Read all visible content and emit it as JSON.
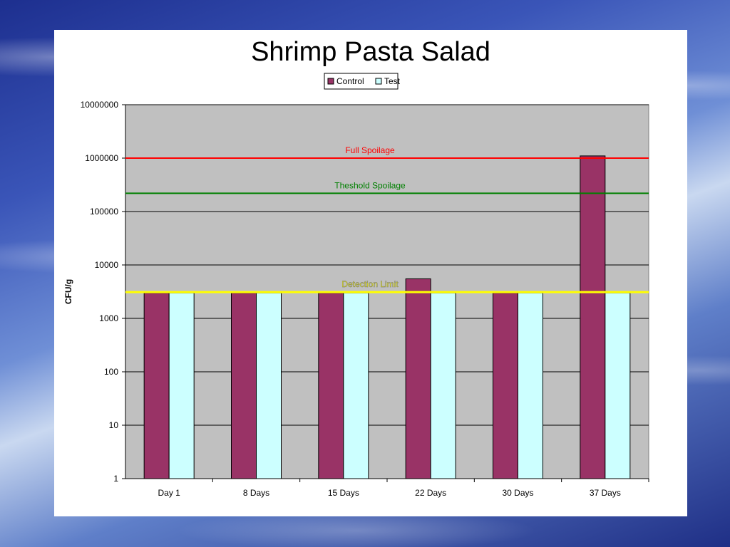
{
  "chart_data": {
    "type": "bar",
    "title": "Shrimp Pasta Salad",
    "xlabel": "",
    "ylabel": "CFU/g",
    "scale": "log",
    "ylim": [
      1,
      10000000
    ],
    "yticks": [
      "1",
      "10",
      "100",
      "1000",
      "10000",
      "100000",
      "1000000",
      "10000000"
    ],
    "categories": [
      "Day 1",
      "8 Days",
      "15 Days",
      "22 Days",
      "30 Days",
      "37 Days"
    ],
    "series": [
      {
        "name": "Control",
        "color": "#993366",
        "values": [
          3000,
          3000,
          3000,
          5500,
          3000,
          1100000
        ]
      },
      {
        "name": "Test",
        "color": "#ccffff",
        "values": [
          3000,
          3000,
          3000,
          3000,
          3000,
          3000
        ]
      }
    ],
    "reference_lines": [
      {
        "label": "Full Spoilage",
        "value": 1000000,
        "color": "#ff0000"
      },
      {
        "label": "Theshold Spoilage",
        "value": 220000,
        "color": "#008000"
      },
      {
        "label": "Detection Limit",
        "value": 3100,
        "color": "#ffff00"
      }
    ],
    "legend_position": "top-center",
    "grid": true,
    "plot_background": "#c0c0c0"
  }
}
